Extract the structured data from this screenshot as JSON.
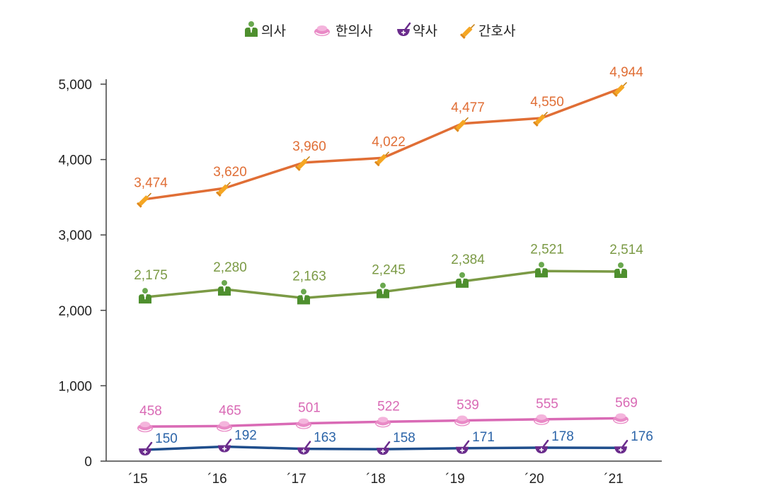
{
  "chart_data": {
    "type": "line",
    "categories": [
      "´15",
      "´16",
      "´17",
      "´18",
      "´19",
      "´20",
      "´21"
    ],
    "ylim": [
      0,
      5000
    ],
    "yticks": [
      0,
      1000,
      2000,
      3000,
      4000,
      5000
    ],
    "ytick_labels": [
      "0",
      "1,000",
      "2,000",
      "3,000",
      "4,000",
      "5,000"
    ],
    "grid": false,
    "legend_position": "top-center",
    "series": [
      {
        "name": "의사",
        "icon": "doctor-icon",
        "color": "#7b9a45",
        "label_color": "#7b9a45",
        "values": [
          2175,
          2280,
          2163,
          2245,
          2384,
          2521,
          2514
        ],
        "labels": [
          "2,175",
          "2,280",
          "2,163",
          "2,245",
          "2,384",
          "2,521",
          "2,514"
        ]
      },
      {
        "name": "한의사",
        "icon": "herbal-doctor-icon",
        "color": "#d96ab5",
        "label_color": "#d96ab5",
        "values": [
          458,
          465,
          501,
          522,
          539,
          555,
          569
        ],
        "labels": [
          "458",
          "465",
          "501",
          "522",
          "539",
          "555",
          "569"
        ]
      },
      {
        "name": "약사",
        "icon": "pharmacist-icon",
        "color": "#1f4e8c",
        "label_color": "#2b64a8",
        "values": [
          150,
          192,
          163,
          158,
          171,
          178,
          176
        ],
        "labels": [
          "150",
          "192",
          "163",
          "158",
          "171",
          "178",
          "176"
        ]
      },
      {
        "name": "간호사",
        "icon": "nurse-icon",
        "color": "#e06e35",
        "label_color": "#e06e35",
        "values": [
          3474,
          3620,
          3960,
          4022,
          4477,
          4550,
          4944
        ],
        "labels": [
          "3,474",
          "3,620",
          "3,960",
          "4,022",
          "4,477",
          "4,550",
          "4,944"
        ]
      }
    ]
  }
}
